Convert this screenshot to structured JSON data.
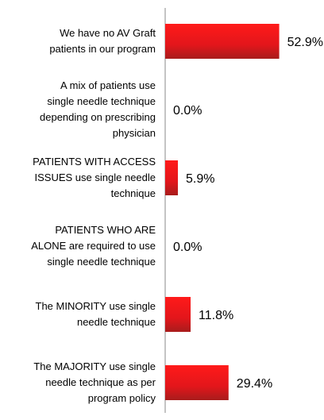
{
  "chart_data": {
    "type": "bar",
    "orientation": "horizontal",
    "categories": [
      "We have no AV Graft\npatients in our program",
      "A mix of patients use\nsingle needle technique\ndepending on prescribing\nphysician",
      "PATIENTS WITH ACCESS\nISSUES use single needle\ntechnique",
      "PATIENTS WHO ARE\nALONE are required to use\nsingle needle technique",
      "The MINORITY use single\nneedle technique",
      "The MAJORITY use single\nneedle technique as per\nprogram policy"
    ],
    "values": [
      52.9,
      0,
      5.9,
      0,
      11.8,
      29.4
    ],
    "value_labels": [
      "52.9%",
      "0.0%",
      "5.9%",
      "0.0%",
      "11.8%",
      "29.4%"
    ],
    "color": "#e3161b",
    "xlim": [
      0,
      70
    ]
  }
}
